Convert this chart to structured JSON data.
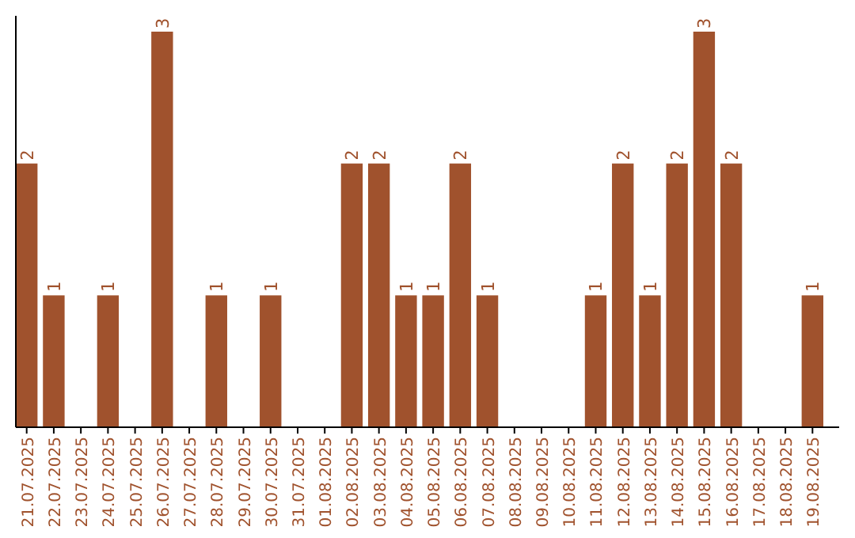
{
  "chart_data": {
    "type": "bar",
    "categories": [
      "21.07.2025",
      "22.07.2025",
      "23.07.2025",
      "24.07.2025",
      "25.07.2025",
      "26.07.2025",
      "27.07.2025",
      "28.07.2025",
      "29.07.2025",
      "30.07.2025",
      "31.07.2025",
      "01.08.2025",
      "02.08.2025",
      "03.08.2025",
      "04.08.2025",
      "05.08.2025",
      "06.08.2025",
      "07.08.2025",
      "08.08.2025",
      "09.08.2025",
      "10.08.2025",
      "11.08.2025",
      "12.08.2025",
      "13.08.2025",
      "14.08.2025",
      "15.08.2025",
      "16.08.2025",
      "17.08.2025",
      "18.08.2025",
      "19.08.2025"
    ],
    "values": [
      2,
      1,
      0,
      1,
      0,
      3,
      0,
      1,
      0,
      1,
      0,
      0,
      2,
      2,
      1,
      1,
      2,
      1,
      0,
      0,
      0,
      1,
      2,
      1,
      2,
      3,
      2,
      0,
      0,
      1
    ],
    "value_labels": [
      "2",
      "1",
      null,
      "1",
      null,
      "3",
      null,
      "1",
      null,
      "1",
      null,
      null,
      "2",
      "2",
      "1",
      "1",
      "2",
      "1",
      null,
      null,
      null,
      "1",
      "2",
      "1",
      "2",
      "3",
      "2",
      null,
      null,
      "1"
    ],
    "color": "#a0522d",
    "ylim": [
      0,
      3.12
    ],
    "tick_labels": "x"
  }
}
